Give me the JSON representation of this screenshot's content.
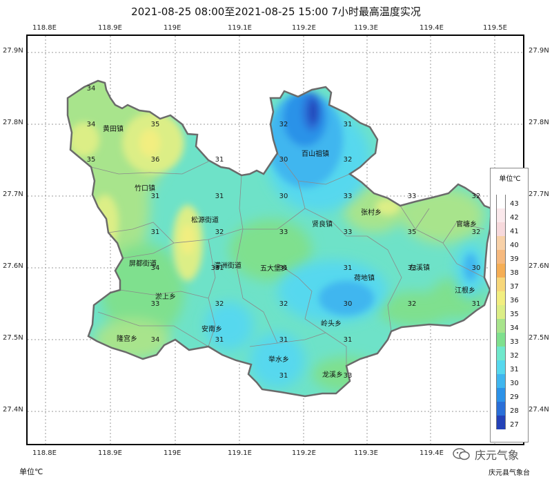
{
  "title": "2021-08-25 08:00至2021-08-25 15:00 7小时最高温度实况",
  "axes": {
    "lon_labels": [
      "118.8E",
      "118.9E",
      "119E",
      "119.1E",
      "119.2E",
      "119.3E",
      "119.4E",
      "119.5E"
    ],
    "lat_labels": [
      "27.9N",
      "27.8N",
      "27.7N",
      "27.6N",
      "27.5N",
      "27.4N"
    ]
  },
  "legend": {
    "title": "单位℃",
    "items": [
      {
        "label": "43",
        "color": "#ffffff"
      },
      {
        "label": "42",
        "color": "#fbe9ec"
      },
      {
        "label": "41",
        "color": "#f7d9dc"
      },
      {
        "label": "40",
        "color": "#f8d1a8"
      },
      {
        "label": "39",
        "color": "#f6b97e"
      },
      {
        "label": "38",
        "color": "#f5ae55"
      },
      {
        "label": "37",
        "color": "#f7d77a"
      },
      {
        "label": "36",
        "color": "#f2ee80"
      },
      {
        "label": "35",
        "color": "#dcee86"
      },
      {
        "label": "34",
        "color": "#a8e48c"
      },
      {
        "label": "33",
        "color": "#7fe08e"
      },
      {
        "label": "32",
        "color": "#6fe8cc"
      },
      {
        "label": "31",
        "color": "#56d8ee"
      },
      {
        "label": "30",
        "color": "#3fb6ef"
      },
      {
        "label": "29",
        "color": "#2c92e8"
      },
      {
        "label": "28",
        "color": "#2a6fd8"
      },
      {
        "label": "27",
        "color": "#2442b8"
      }
    ]
  },
  "towns": [
    {
      "name": "荷地镇"
    },
    {
      "name": "百山祖镇"
    },
    {
      "name": "竹口镇"
    },
    {
      "name": "松源街道"
    },
    {
      "name": "濛洲街道"
    },
    {
      "name": "五大堡乡"
    },
    {
      "name": "贤良镇"
    },
    {
      "name": "张村乡"
    },
    {
      "name": "屏都街道"
    },
    {
      "name": "淤上乡"
    },
    {
      "name": "安南乡"
    },
    {
      "name": "隆宫乡"
    },
    {
      "name": "举水乡"
    },
    {
      "name": "龙溪乡"
    },
    {
      "name": "岭头乡"
    },
    {
      "name": "左溪镇"
    },
    {
      "name": "江根乡"
    },
    {
      "name": "官塘乡"
    },
    {
      "name": "黄田镇"
    }
  ],
  "values": [
    {
      "v": "34"
    },
    {
      "v": "34"
    },
    {
      "v": "35"
    },
    {
      "v": "35"
    },
    {
      "v": "36"
    },
    {
      "v": "31"
    },
    {
      "v": "31"
    },
    {
      "v": "31"
    },
    {
      "v": "32"
    },
    {
      "v": "33"
    },
    {
      "v": "34"
    },
    {
      "v": "33"
    },
    {
      "v": "32"
    },
    {
      "v": "31"
    },
    {
      "v": "32"
    },
    {
      "v": "31"
    },
    {
      "v": "31"
    },
    {
      "v": "30"
    },
    {
      "v": "32"
    },
    {
      "v": "30"
    },
    {
      "v": "33"
    },
    {
      "v": "31"
    },
    {
      "v": "30"
    },
    {
      "v": "32"
    },
    {
      "v": "32"
    },
    {
      "v": "31"
    },
    {
      "v": "31"
    },
    {
      "v": "33"
    },
    {
      "v": "35"
    },
    {
      "v": "33"
    },
    {
      "v": "32"
    },
    {
      "v": "31"
    },
    {
      "v": "30"
    },
    {
      "v": "31"
    },
    {
      "v": "34"
    },
    {
      "v": "32"
    },
    {
      "v": "33"
    },
    {
      "v": "34"
    },
    {
      "v": "33"
    },
    {
      "v": "31"
    },
    {
      "v": "31"
    }
  ],
  "footer": {
    "unit": "单位℃",
    "watermark": "庆元气象",
    "agency": "庆元县气象台"
  }
}
